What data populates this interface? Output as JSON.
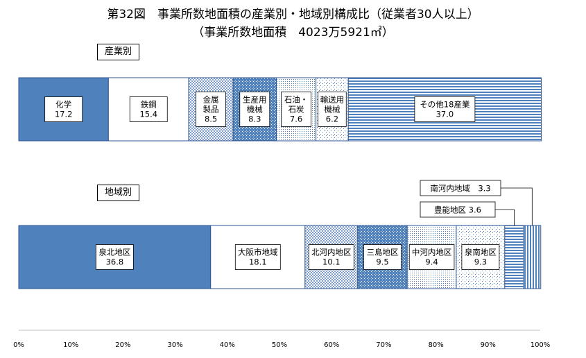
{
  "title": "第32図　事業所数地面積の産業別・地域別構成比（従業者30人以上）",
  "subtitle": "（事業所数地面積　4023万5921㎡）",
  "section_labels": {
    "industry": "産業別",
    "region": "地域別"
  },
  "colors": {
    "solid": "#4f81bd",
    "border": "#2f5597",
    "white": "#ffffff"
  },
  "chart_data": {
    "type": "bar",
    "orientation": "horizontal-stacked-100",
    "xlim": [
      0,
      100
    ],
    "x_ticks": [
      "0%",
      "10%",
      "20%",
      "30%",
      "40%",
      "50%",
      "60%",
      "70%",
      "80%",
      "90%",
      "100%"
    ],
    "grid": false,
    "bars": [
      {
        "name": "産業別",
        "segments": [
          {
            "label": [
              "化学",
              "17.2"
            ],
            "value": 17.2,
            "fill": "solid"
          },
          {
            "label": [
              "鉄鋼",
              "15.4"
            ],
            "value": 15.4,
            "fill": "white"
          },
          {
            "label": [
              "金属",
              "製品",
              "8.5"
            ],
            "value": 8.5,
            "fill": "grid-light"
          },
          {
            "label": [
              "生産用",
              "機械",
              "8.3"
            ],
            "value": 8.3,
            "fill": "grid-dark"
          },
          {
            "label": [
              "石油・",
              "石炭",
              "7.6"
            ],
            "value": 7.6,
            "fill": "dots"
          },
          {
            "label": [
              "輸送用",
              "機械",
              "6.2"
            ],
            "value": 6.2,
            "fill": "dots-sparse"
          },
          {
            "label": [
              "その他18産業",
              "37.0"
            ],
            "value": 37.0,
            "fill": "hstripes"
          }
        ]
      },
      {
        "name": "地域別",
        "segments": [
          {
            "label": [
              "泉北地区",
              "36.8"
            ],
            "value": 36.8,
            "fill": "solid"
          },
          {
            "label": [
              "大阪市地域",
              "18.1"
            ],
            "value": 18.1,
            "fill": "white"
          },
          {
            "label": [
              "北河内地区",
              "10.1"
            ],
            "value": 10.1,
            "fill": "grid-light"
          },
          {
            "label": [
              "三島地区",
              "9.5"
            ],
            "value": 9.5,
            "fill": "grid-dark"
          },
          {
            "label": [
              "中河内地区",
              "9.4"
            ],
            "value": 9.4,
            "fill": "dots"
          },
          {
            "label": [
              "泉南地区",
              "9.3"
            ],
            "value": 9.3,
            "fill": "dots-sparse"
          },
          {
            "label": [
              "豊能地区 3.6"
            ],
            "value": 3.6,
            "fill": "hstripes",
            "callout": true
          },
          {
            "label": [
              "南河内地域　3.3"
            ],
            "value": 3.3,
            "fill": "vstripes",
            "callout": true
          }
        ]
      }
    ]
  }
}
